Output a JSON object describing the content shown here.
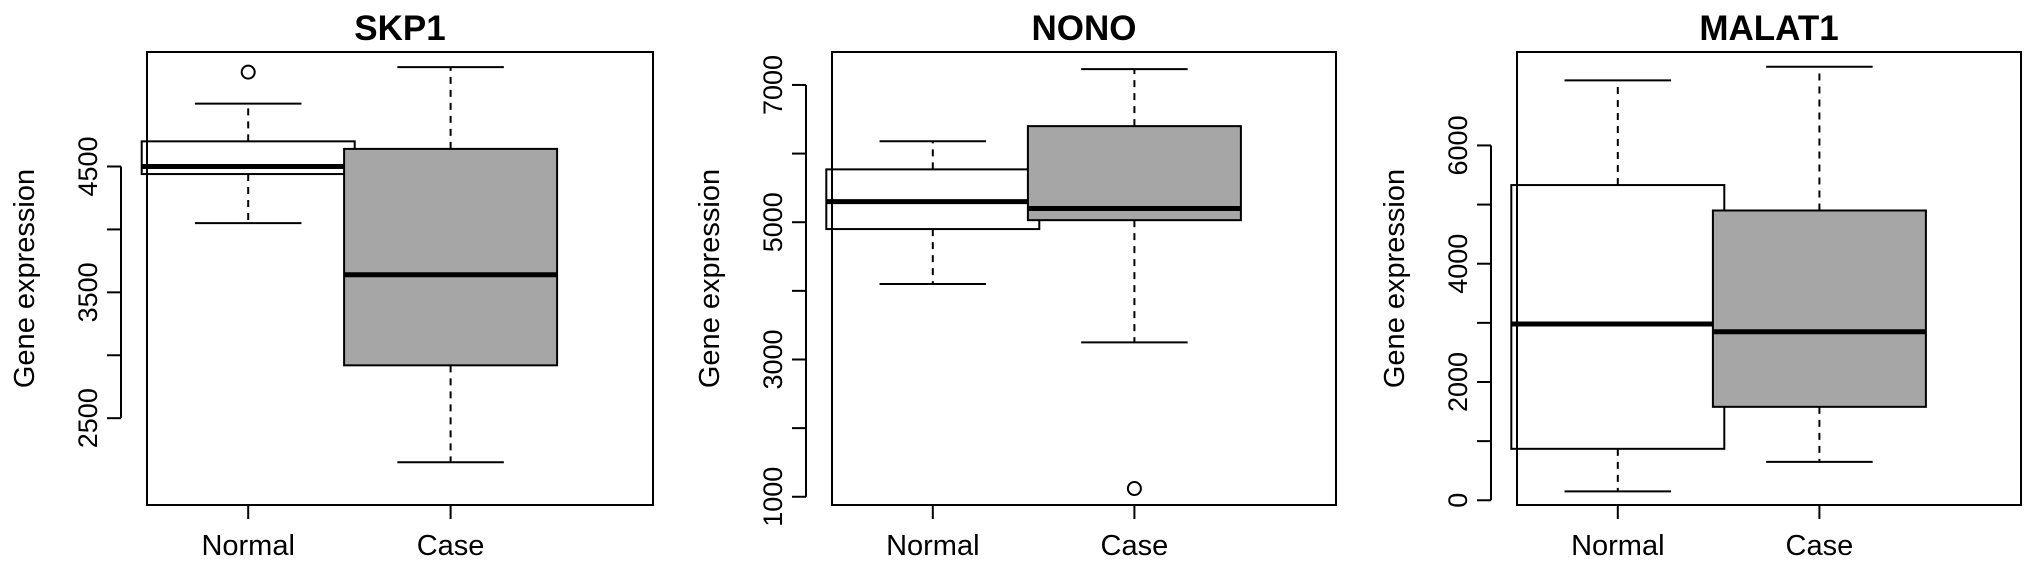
{
  "chart_data": [
    {
      "type": "box",
      "title": "SKP1",
      "xlabel": "",
      "ylabel": "Gene expression",
      "ylim": [
        1810,
        5410
      ],
      "yticks": [
        2500,
        3500,
        4500
      ],
      "tick_labels": [
        "2500",
        "3500",
        "4500"
      ],
      "categories": [
        "Normal",
        "Case"
      ],
      "boxes": [
        {
          "category": "Normal",
          "fill": "#ffffff",
          "whisker_low": 4050,
          "q1": 4440,
          "median": 4500,
          "q3": 4700,
          "whisker_high": 5000,
          "outliers": [
            5250
          ]
        },
        {
          "category": "Case",
          "fill": "#a6a6a6",
          "whisker_low": 2150,
          "q1": 2920,
          "median": 3640,
          "q3": 4640,
          "whisker_high": 5290,
          "outliers": []
        }
      ]
    },
    {
      "type": "box",
      "title": "NONO",
      "xlabel": "",
      "ylabel": "Gene expression",
      "ylim": [
        880,
        7480
      ],
      "yticks": [
        1000,
        3000,
        5000,
        7000
      ],
      "tick_labels": [
        "1000",
        "3000",
        "5000",
        "7000"
      ],
      "categories": [
        "Normal",
        "Case"
      ],
      "boxes": [
        {
          "category": "Normal",
          "fill": "#ffffff",
          "whisker_low": 4100,
          "q1": 4900,
          "median": 5300,
          "q3": 5770,
          "whisker_high": 6180,
          "outliers": []
        },
        {
          "category": "Case",
          "fill": "#a6a6a6",
          "whisker_low": 3250,
          "q1": 5030,
          "median": 5200,
          "q3": 6400,
          "whisker_high": 7230,
          "outliers": [
            1120
          ]
        }
      ]
    },
    {
      "type": "box",
      "title": "MALAT1",
      "xlabel": "",
      "ylabel": "Gene expression",
      "ylim": [
        -80,
        7580
      ],
      "yticks": [
        0,
        2000,
        4000,
        6000
      ],
      "tick_labels": [
        "0",
        "2000",
        "4000",
        "6000"
      ],
      "categories": [
        "Normal",
        "Case"
      ],
      "boxes": [
        {
          "category": "Normal",
          "fill": "#ffffff",
          "whisker_low": 150,
          "q1": 870,
          "median": 2980,
          "q3": 5330,
          "whisker_high": 7100,
          "outliers": []
        },
        {
          "category": "Case",
          "fill": "#a6a6a6",
          "whisker_low": 650,
          "q1": 1580,
          "median": 2850,
          "q3": 4900,
          "whisker_high": 7330,
          "outliers": []
        }
      ]
    }
  ]
}
